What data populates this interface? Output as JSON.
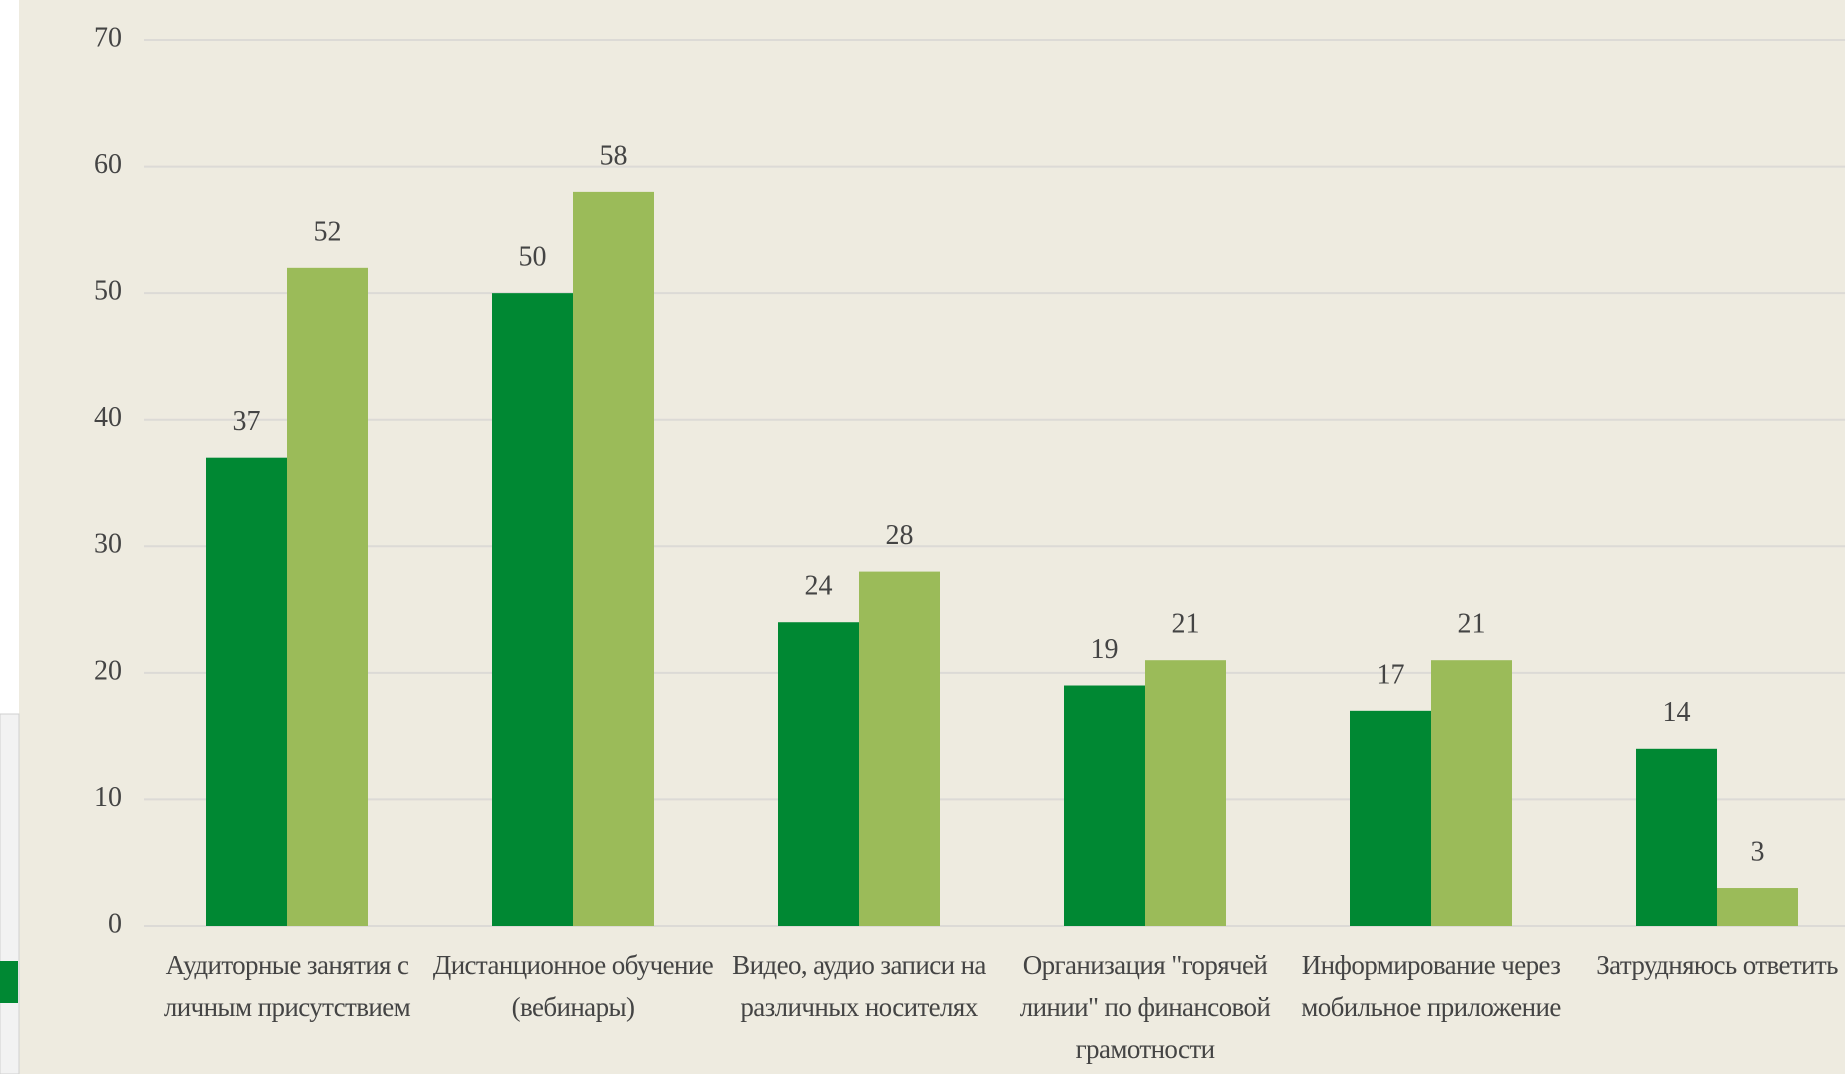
{
  "chart_data": {
    "type": "bar",
    "categories": [
      "Аудиторные занятия с личным присутствием",
      "Дистанционное обучение (вебинары)",
      "Видео, аудио записи на различных носителях",
      "Организация \"горячей линии\" по финансовой грамотности",
      "Информирование через мобильное приложение",
      "Затрудняюсь ответить"
    ],
    "series": [
      {
        "color": "#008833",
        "values": [
          37,
          50,
          24,
          19,
          17,
          14
        ]
      },
      {
        "color": "#9bbb59",
        "values": [
          52,
          58,
          28,
          21,
          21,
          3
        ]
      }
    ],
    "ylim": [
      0,
      70
    ],
    "yticks": [
      0,
      10,
      20,
      30,
      40,
      50,
      60,
      70
    ],
    "grid": true
  }
}
